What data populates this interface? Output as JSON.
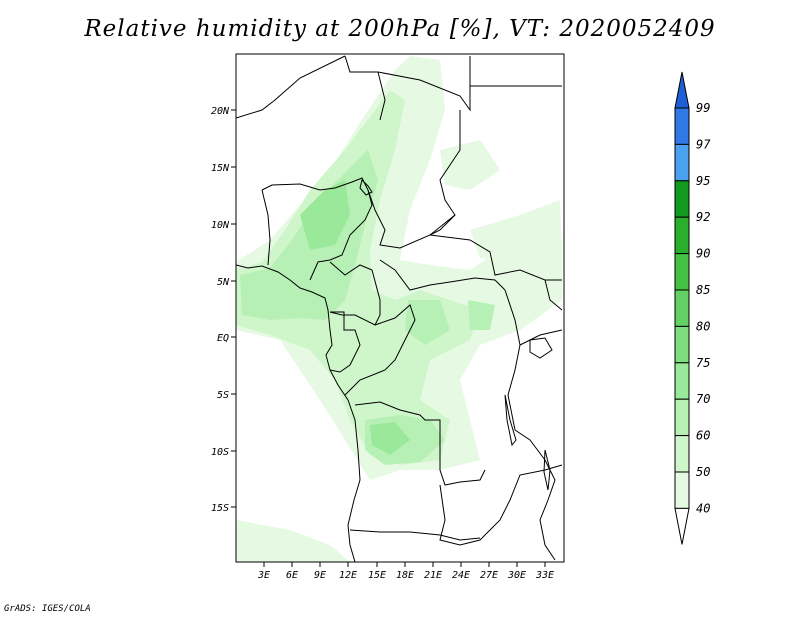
{
  "title": "Relative humidity at 200hPa [%], VT: 2020052409",
  "credit": "GrADS: IGES/COLA",
  "map": {
    "lat_labels": [
      "20N",
      "15N",
      "10N",
      "5N",
      "EQ",
      "5S",
      "10S",
      "15S"
    ],
    "lon_labels": [
      "3E",
      "6E",
      "9E",
      "12E",
      "15E",
      "18E",
      "21E",
      "24E",
      "27E",
      "30E",
      "33E"
    ],
    "lat_range": [
      -20,
      25
    ],
    "lon_range": [
      0,
      35
    ]
  },
  "colorbar": {
    "levels": [
      "99",
      "97",
      "95",
      "92",
      "90",
      "85",
      "80",
      "75",
      "70",
      "60",
      "50",
      "40"
    ],
    "colors": [
      "#1f5fd6",
      "#2f78e6",
      "#4ba0f0",
      "#119a1f",
      "#2aaf2c",
      "#43c143",
      "#63d163",
      "#7ede7e",
      "#9ae89a",
      "#b6f0b4",
      "#cff5cb",
      "#e6fae3"
    ]
  }
}
